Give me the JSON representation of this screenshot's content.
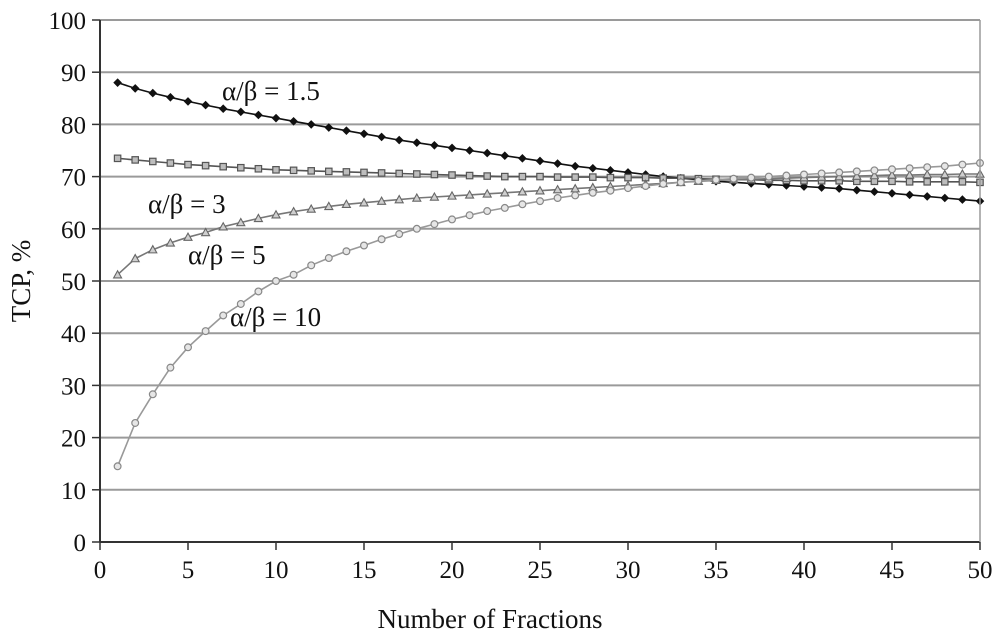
{
  "chart_data": {
    "type": "line",
    "title": "",
    "xlabel": "Number of Fractions",
    "ylabel": "TCP, %",
    "xlim": [
      0,
      50
    ],
    "ylim": [
      0,
      100
    ],
    "x_ticks": [
      "0",
      "5",
      "10",
      "15",
      "20",
      "25",
      "30",
      "35",
      "40",
      "45",
      "50"
    ],
    "y_ticks": [
      "0",
      "10",
      "20",
      "30",
      "40",
      "50",
      "60",
      "70",
      "80",
      "90",
      "100"
    ],
    "grid": "horizontal",
    "legend": "none",
    "x": [
      1,
      2,
      3,
      4,
      5,
      6,
      7,
      8,
      9,
      10,
      11,
      12,
      13,
      14,
      15,
      16,
      17,
      18,
      19,
      20,
      21,
      22,
      23,
      24,
      25,
      26,
      27,
      28,
      29,
      30,
      31,
      32,
      33,
      34,
      35,
      36,
      37,
      38,
      39,
      40,
      41,
      42,
      43,
      44,
      45,
      46,
      47,
      48,
      49,
      50
    ],
    "series": [
      {
        "name": "α/β = 1.5",
        "marker": "diamond",
        "color": "#111111",
        "values": [
          88.0,
          86.9,
          86.0,
          85.2,
          84.4,
          83.7,
          83.0,
          82.4,
          81.8,
          81.2,
          80.6,
          80.0,
          79.4,
          78.8,
          78.2,
          77.6,
          77.0,
          76.5,
          76.0,
          75.5,
          75.0,
          74.5,
          74.0,
          73.5,
          73.0,
          72.5,
          72.0,
          71.6,
          71.2,
          70.8,
          70.4,
          70.0,
          69.7,
          69.4,
          69.1,
          68.9,
          68.7,
          68.5,
          68.3,
          68.1,
          67.9,
          67.7,
          67.4,
          67.1,
          66.8,
          66.5,
          66.2,
          65.9,
          65.6,
          65.3
        ]
      },
      {
        "name": "α/β = 3",
        "marker": "square",
        "color": "#555555",
        "values": [
          73.5,
          73.2,
          72.9,
          72.6,
          72.3,
          72.1,
          71.9,
          71.7,
          71.5,
          71.3,
          71.2,
          71.1,
          71.0,
          70.9,
          70.8,
          70.7,
          70.6,
          70.5,
          70.4,
          70.3,
          70.2,
          70.1,
          70.0,
          70.0,
          70.0,
          69.9,
          69.9,
          69.9,
          69.8,
          69.8,
          69.8,
          69.7,
          69.7,
          69.6,
          69.5,
          69.4,
          69.4,
          69.3,
          69.3,
          69.2,
          69.2,
          69.2,
          69.1,
          69.1,
          69.1,
          69.0,
          69.0,
          69.0,
          69.0,
          68.9
        ]
      },
      {
        "name": "α/β = 5",
        "marker": "triangle",
        "color": "#777777",
        "values": [
          51.2,
          54.3,
          56.0,
          57.3,
          58.4,
          59.3,
          60.4,
          61.2,
          62.0,
          62.7,
          63.3,
          63.8,
          64.3,
          64.7,
          65.0,
          65.3,
          65.6,
          65.9,
          66.1,
          66.3,
          66.5,
          66.7,
          66.9,
          67.1,
          67.3,
          67.5,
          67.7,
          67.9,
          68.1,
          68.3,
          68.5,
          68.7,
          68.9,
          69.1,
          69.3,
          69.4,
          69.5,
          69.6,
          69.7,
          69.8,
          69.9,
          70.0,
          70.1,
          70.2,
          70.3,
          70.3,
          70.4,
          70.4,
          70.5,
          70.5
        ]
      },
      {
        "name": "α/β = 10",
        "marker": "circle",
        "color": "#999999",
        "values": [
          14.5,
          22.8,
          28.3,
          33.4,
          37.3,
          40.4,
          43.4,
          45.6,
          48.0,
          50.0,
          51.2,
          53.0,
          54.4,
          55.7,
          56.8,
          58.0,
          59.0,
          60.0,
          60.9,
          61.8,
          62.6,
          63.4,
          64.0,
          64.7,
          65.3,
          65.9,
          66.4,
          66.9,
          67.3,
          67.8,
          68.2,
          68.6,
          68.9,
          69.2,
          69.4,
          69.6,
          69.8,
          70.0,
          70.2,
          70.4,
          70.6,
          70.8,
          71.0,
          71.2,
          71.4,
          71.6,
          71.8,
          72.0,
          72.3,
          72.6
        ]
      }
    ],
    "annotations": [
      {
        "text": "α/β = 1.5",
        "series_index": 0
      },
      {
        "text": "α/β = 3",
        "series_index": 1
      },
      {
        "text": "α/β = 5",
        "series_index": 2
      },
      {
        "text": "α/β = 10",
        "series_index": 3
      }
    ]
  }
}
